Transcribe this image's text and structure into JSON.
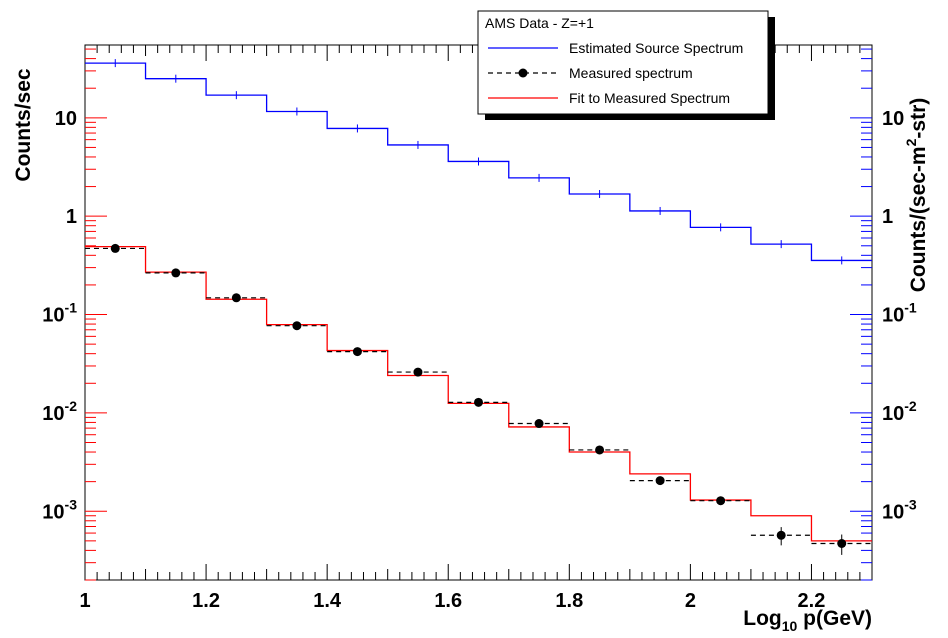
{
  "chart_data": {
    "type": "line",
    "title": "",
    "xlabel": "Log₁₀ p(GeV)",
    "xlabel_main": "Log",
    "xlabel_sub": "10",
    "xlabel_rest": " p(GeV)",
    "ylabel_left": "Counts/sec",
    "ylabel_right_parts": [
      "Counts/(sec-m",
      "2",
      "-str)"
    ],
    "xlim": [
      1,
      2.3
    ],
    "ylim_log": [
      0.0002,
      55
    ],
    "y_scale_left": "log",
    "y_scale_right": "log",
    "right_axis_color": "#0000ff",
    "left_axis_color": "#ff0000",
    "x_ticks": [
      {
        "value": 1,
        "label": "1"
      },
      {
        "value": 1.2,
        "label": "1.2"
      },
      {
        "value": 1.4,
        "label": "1.4"
      },
      {
        "value": 1.6,
        "label": "1.6"
      },
      {
        "value": 1.8,
        "label": "1.8"
      },
      {
        "value": 2,
        "label": "2"
      },
      {
        "value": 2.2,
        "label": "2.2"
      }
    ],
    "y_ticks_left": [
      {
        "value": 10,
        "base": "10",
        "exp": ""
      },
      {
        "value": 1,
        "base": "1",
        "exp": ""
      },
      {
        "value": 0.1,
        "base": "10",
        "exp": "-1"
      },
      {
        "value": 0.01,
        "base": "10",
        "exp": "-2"
      },
      {
        "value": 0.001,
        "base": "10",
        "exp": "-3"
      }
    ],
    "y_ticks_right": [
      {
        "value": 10,
        "base": "10",
        "exp": ""
      },
      {
        "value": 1,
        "base": "1",
        "exp": ""
      },
      {
        "value": 0.1,
        "base": "10",
        "exp": "-1"
      },
      {
        "value": 0.01,
        "base": "10",
        "exp": "-2"
      },
      {
        "value": 0.001,
        "base": "10",
        "exp": "-3"
      }
    ],
    "bin_edges": [
      1.0,
      1.1,
      1.2,
      1.3,
      1.4,
      1.5,
      1.6,
      1.7,
      1.8,
      1.9,
      2.0,
      2.1,
      2.2,
      2.3
    ],
    "legend_title": "AMS Data - Z=+1",
    "legend_placement": "top-right",
    "series": [
      {
        "name": "Estimated Source Spectrum",
        "style": "step-line",
        "color": "#0000ff",
        "axis": "right",
        "values": [
          36,
          25,
          17,
          11.6,
          7.8,
          5.3,
          3.6,
          2.45,
          1.68,
          1.13,
          0.77,
          0.52,
          0.355
        ]
      },
      {
        "name": "Measured spectrum",
        "style": "dashed-step-with-markers",
        "color": "#000000",
        "axis": "left",
        "values": [
          0.47,
          0.265,
          0.148,
          0.077,
          0.042,
          0.026,
          0.0128,
          0.0078,
          0.0042,
          0.00205,
          0.00128,
          0.00057,
          0.00047
        ],
        "errors": [
          0,
          0,
          0,
          0,
          0,
          0,
          0,
          0,
          0,
          0,
          0.00012,
          0.00012,
          0.00011
        ]
      },
      {
        "name": "Fit to Measured Spectrum",
        "style": "step-line",
        "color": "#ff0000",
        "axis": "left",
        "values": [
          0.49,
          0.27,
          0.143,
          0.079,
          0.043,
          0.024,
          0.0125,
          0.0072,
          0.004,
          0.0024,
          0.0013,
          0.0009,
          0.0005
        ]
      }
    ]
  }
}
